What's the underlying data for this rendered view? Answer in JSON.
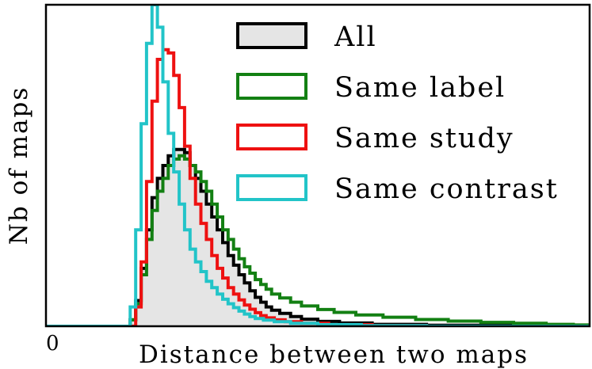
{
  "chart_data": {
    "type": "histogram",
    "title": "",
    "xlabel": "Distance between two maps",
    "ylabel": "Nb of maps",
    "x_tick_labels": [
      "0"
    ],
    "xlim": [
      0,
      1
    ],
    "ylim": [
      0,
      1
    ],
    "grid": false,
    "legend_position": "top-right",
    "series": [
      {
        "name": "All",
        "color": "#000000",
        "fill": "#e5e5e5",
        "points": [
          [
            0.0,
            0
          ],
          [
            0.14,
            0
          ],
          [
            0.155,
            0.02
          ],
          [
            0.165,
            0.08
          ],
          [
            0.175,
            0.18
          ],
          [
            0.185,
            0.3
          ],
          [
            0.195,
            0.4
          ],
          [
            0.205,
            0.46
          ],
          [
            0.215,
            0.5
          ],
          [
            0.225,
            0.53
          ],
          [
            0.235,
            0.55
          ],
          [
            0.245,
            0.55
          ],
          [
            0.255,
            0.54
          ],
          [
            0.265,
            0.5
          ],
          [
            0.275,
            0.46
          ],
          [
            0.285,
            0.42
          ],
          [
            0.295,
            0.38
          ],
          [
            0.305,
            0.34
          ],
          [
            0.315,
            0.3
          ],
          [
            0.325,
            0.26
          ],
          [
            0.335,
            0.22
          ],
          [
            0.345,
            0.19
          ],
          [
            0.355,
            0.16
          ],
          [
            0.365,
            0.135
          ],
          [
            0.375,
            0.11
          ],
          [
            0.385,
            0.09
          ],
          [
            0.395,
            0.075
          ],
          [
            0.405,
            0.06
          ],
          [
            0.415,
            0.05
          ],
          [
            0.43,
            0.04
          ],
          [
            0.45,
            0.03
          ],
          [
            0.47,
            0.022
          ],
          [
            0.5,
            0.015
          ],
          [
            0.54,
            0.01
          ],
          [
            0.6,
            0.006
          ],
          [
            0.7,
            0.003
          ],
          [
            1.0,
            0
          ]
        ]
      },
      {
        "name": "Same label",
        "color": "#138013",
        "points": [
          [
            0.0,
            0
          ],
          [
            0.14,
            0
          ],
          [
            0.155,
            0.02
          ],
          [
            0.165,
            0.07
          ],
          [
            0.175,
            0.16
          ],
          [
            0.185,
            0.27
          ],
          [
            0.195,
            0.36
          ],
          [
            0.205,
            0.42
          ],
          [
            0.215,
            0.46
          ],
          [
            0.225,
            0.5
          ],
          [
            0.235,
            0.52
          ],
          [
            0.245,
            0.53
          ],
          [
            0.255,
            0.52
          ],
          [
            0.265,
            0.5
          ],
          [
            0.275,
            0.48
          ],
          [
            0.285,
            0.45
          ],
          [
            0.295,
            0.42
          ],
          [
            0.305,
            0.38
          ],
          [
            0.315,
            0.34
          ],
          [
            0.325,
            0.3
          ],
          [
            0.335,
            0.27
          ],
          [
            0.345,
            0.24
          ],
          [
            0.355,
            0.21
          ],
          [
            0.365,
            0.185
          ],
          [
            0.375,
            0.165
          ],
          [
            0.385,
            0.145
          ],
          [
            0.395,
            0.13
          ],
          [
            0.405,
            0.115
          ],
          [
            0.415,
            0.1
          ],
          [
            0.43,
            0.088
          ],
          [
            0.45,
            0.075
          ],
          [
            0.47,
            0.063
          ],
          [
            0.5,
            0.052
          ],
          [
            0.53,
            0.043
          ],
          [
            0.57,
            0.035
          ],
          [
            0.62,
            0.028
          ],
          [
            0.68,
            0.021
          ],
          [
            0.74,
            0.016
          ],
          [
            0.8,
            0.012
          ],
          [
            0.86,
            0.009
          ],
          [
            0.92,
            0.006
          ],
          [
            0.97,
            0.004
          ],
          [
            1.0,
            0.003
          ]
        ]
      },
      {
        "name": "Same study",
        "color": "#ee1111",
        "points": [
          [
            0.0,
            0
          ],
          [
            0.15,
            0
          ],
          [
            0.165,
            0.06
          ],
          [
            0.175,
            0.2
          ],
          [
            0.185,
            0.45
          ],
          [
            0.195,
            0.7
          ],
          [
            0.205,
            0.83
          ],
          [
            0.215,
            0.86
          ],
          [
            0.225,
            0.85
          ],
          [
            0.235,
            0.78
          ],
          [
            0.245,
            0.68
          ],
          [
            0.255,
            0.56
          ],
          [
            0.265,
            0.46
          ],
          [
            0.275,
            0.38
          ],
          [
            0.285,
            0.32
          ],
          [
            0.295,
            0.27
          ],
          [
            0.305,
            0.22
          ],
          [
            0.315,
            0.18
          ],
          [
            0.325,
            0.15
          ],
          [
            0.335,
            0.12
          ],
          [
            0.345,
            0.1
          ],
          [
            0.355,
            0.082
          ],
          [
            0.365,
            0.066
          ],
          [
            0.375,
            0.053
          ],
          [
            0.385,
            0.042
          ],
          [
            0.395,
            0.033
          ],
          [
            0.405,
            0.026
          ],
          [
            0.42,
            0.02
          ],
          [
            0.44,
            0.014
          ],
          [
            0.47,
            0.009
          ],
          [
            0.52,
            0.005
          ],
          [
            0.6,
            0.002
          ],
          [
            0.7,
            0
          ],
          [
            1.0,
            0
          ]
        ]
      },
      {
        "name": "Same contrast",
        "color": "#22c4c8",
        "points": [
          [
            0.0,
            0
          ],
          [
            0.14,
            0
          ],
          [
            0.155,
            0.06
          ],
          [
            0.165,
            0.3
          ],
          [
            0.175,
            0.63
          ],
          [
            0.185,
            0.88
          ],
          [
            0.195,
            1.0
          ],
          [
            0.205,
            0.93
          ],
          [
            0.215,
            0.76
          ],
          [
            0.225,
            0.6
          ],
          [
            0.235,
            0.48
          ],
          [
            0.245,
            0.38
          ],
          [
            0.255,
            0.3
          ],
          [
            0.265,
            0.24
          ],
          [
            0.275,
            0.2
          ],
          [
            0.285,
            0.17
          ],
          [
            0.295,
            0.14
          ],
          [
            0.305,
            0.12
          ],
          [
            0.315,
            0.1
          ],
          [
            0.325,
            0.084
          ],
          [
            0.335,
            0.07
          ],
          [
            0.345,
            0.058
          ],
          [
            0.355,
            0.047
          ],
          [
            0.365,
            0.038
          ],
          [
            0.375,
            0.03
          ],
          [
            0.385,
            0.024
          ],
          [
            0.4,
            0.019
          ],
          [
            0.42,
            0.014
          ],
          [
            0.45,
            0.009
          ],
          [
            0.5,
            0.005
          ],
          [
            0.58,
            0.002
          ],
          [
            0.7,
            0
          ],
          [
            1.0,
            0
          ]
        ]
      }
    ]
  }
}
